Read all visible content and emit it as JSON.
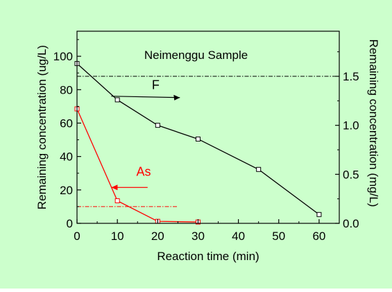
{
  "chart_data": {
    "type": "line",
    "title": "Neimenggu Sample",
    "xlabel": "Reaction time (min)",
    "ylabel_left": "Remaining concentration (ug/L)",
    "ylabel_right": "Remaining concentration (mg/L)",
    "xlim": [
      0,
      65
    ],
    "ylim_left": [
      0,
      115
    ],
    "ylim_right": [
      0,
      1.96
    ],
    "x_ticks": [
      0,
      10,
      20,
      30,
      40,
      50,
      60
    ],
    "y_ticks_left": [
      0,
      20,
      40,
      60,
      80,
      100
    ],
    "y_ticks_right": [
      0.0,
      0.5,
      1.0,
      1.5
    ],
    "series": [
      {
        "name": "F",
        "axis": "right",
        "color": "#000000",
        "marker": "square-open",
        "x": [
          0,
          10,
          20,
          30,
          45,
          60
        ],
        "y": [
          1.63,
          1.26,
          1.0,
          0.86,
          0.55,
          0.09
        ]
      },
      {
        "name": "As",
        "axis": "left",
        "color": "#ff0000",
        "marker": "square-open",
        "x": [
          0,
          10,
          20,
          30
        ],
        "y": [
          68.5,
          13.5,
          1.2,
          0.8
        ]
      }
    ],
    "reference_lines": [
      {
        "axis": "right",
        "y": 1.5,
        "color": "#000000",
        "style": "dash-dot",
        "x_range": [
          0,
          65
        ]
      },
      {
        "axis": "left",
        "y": 10,
        "color": "#ff0000",
        "style": "dash-dot",
        "x_range": [
          0,
          25
        ]
      }
    ],
    "annotations": [
      {
        "text": "F",
        "color": "#000000",
        "arrow_direction": "right"
      },
      {
        "text": "As",
        "color": "#ff0000",
        "arrow_direction": "left"
      }
    ],
    "grid": false,
    "background_color": "#ccffcc",
    "plot_background_color": "#ccffcc"
  }
}
